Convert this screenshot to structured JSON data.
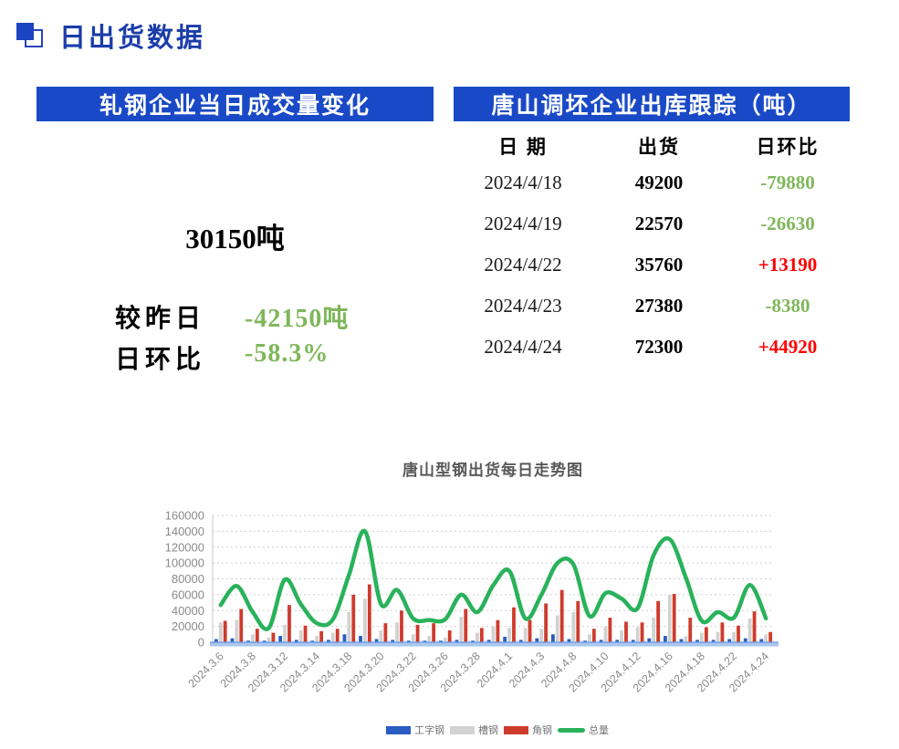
{
  "page_title": "日出货数据",
  "colors": {
    "banner_bg": "#1949C6",
    "banner_text": "#FFFFFF",
    "title_text": "#1B3DA8",
    "green": "#7FB75A",
    "red": "#FF0000",
    "black": "#000000"
  },
  "left_panel": {
    "banner": "轧钢企业当日成交量变化",
    "today_value": "30150吨",
    "rows": [
      {
        "label": "较昨日",
        "value": "-42150吨",
        "color": "green"
      },
      {
        "label": "日环比",
        "value": "-58.3%",
        "color": "green"
      }
    ]
  },
  "right_panel": {
    "banner": "唐山调坯企业出库跟踪（吨）",
    "columns": [
      "日 期",
      "出货",
      "日环比"
    ],
    "rows": [
      {
        "date": "2024/4/18",
        "shipment": "49200",
        "change": "-79880",
        "change_color": "green"
      },
      {
        "date": "2024/4/19",
        "shipment": "22570",
        "change": "-26630",
        "change_color": "green"
      },
      {
        "date": "2024/4/22",
        "shipment": "35760",
        "change": "+13190",
        "change_color": "red"
      },
      {
        "date": "2024/4/23",
        "shipment": "27380",
        "change": "-8380",
        "change_color": "green"
      },
      {
        "date": "2024/4/24",
        "shipment": "72300",
        "change": "+44920",
        "change_color": "red"
      }
    ]
  },
  "chart_data": {
    "type": "combo",
    "title": "唐山型钢出货每日走势图",
    "ylim": [
      0,
      160000
    ],
    "ytick_step": 20000,
    "grid": true,
    "legend_position": "bottom",
    "xtick_every": 2,
    "axis_strip_color": "#A9C7F0",
    "axis_strip_edge": "#6B97DE",
    "label_color": "#8A8A8A",
    "grid_color": "#CFCFCF",
    "categories": [
      "2024.3.6",
      "2024.3.7",
      "2024.3.8",
      "2024.3.11",
      "2024.3.12",
      "2024.3.13",
      "2024.3.14",
      "2024.3.15",
      "2024.3.18",
      "2024.3.19",
      "2024.3.20",
      "2024.3.21",
      "2024.3.22",
      "2024.3.25",
      "2024.3.26",
      "2024.3.27",
      "2024.3.28",
      "2024.3.29",
      "2024.4.1",
      "2024.4.2",
      "2024.4.3",
      "2024.4.7",
      "2024.4.8",
      "2024.4.9",
      "2024.4.10",
      "2024.4.11",
      "2024.4.12",
      "2024.4.15",
      "2024.4.16",
      "2024.4.17",
      "2024.4.18",
      "2024.4.19",
      "2024.4.22",
      "2024.4.23",
      "2024.4.24"
    ],
    "series": [
      {
        "name": "工字钢",
        "type": "bar",
        "color": "#2B5CC1",
        "values": [
          4000,
          5000,
          2000,
          2000,
          8000,
          3000,
          2000,
          3000,
          10000,
          8000,
          4000,
          3000,
          2000,
          2000,
          2000,
          3000,
          2000,
          3000,
          7000,
          3000,
          5000,
          10000,
          4000,
          2000,
          3000,
          3000,
          3000,
          5000,
          8000,
          4000,
          3000,
          3000,
          4000,
          5000,
          4000
        ]
      },
      {
        "name": "槽钢",
        "type": "bar",
        "color": "#D2D2D2",
        "values": [
          25000,
          28000,
          10000,
          6000,
          22000,
          15000,
          8000,
          12000,
          38000,
          55000,
          15000,
          25000,
          10000,
          8000,
          6000,
          32000,
          12000,
          20000,
          18000,
          18000,
          17000,
          34000,
          38000,
          10000,
          20000,
          15000,
          19000,
          31000,
          60000,
          8000,
          12000,
          13000,
          13000,
          30000,
          10000
        ]
      },
      {
        "name": "角钢",
        "type": "bar",
        "color": "#CE3B2C",
        "values": [
          27000,
          42000,
          17000,
          12000,
          47000,
          21000,
          14000,
          17000,
          60000,
          73000,
          24000,
          40000,
          22000,
          24000,
          15000,
          42000,
          18000,
          28000,
          44000,
          28000,
          49000,
          66000,
          52000,
          17000,
          31000,
          26000,
          25000,
          52000,
          61000,
          31000,
          19000,
          25000,
          21000,
          39000,
          13000
        ]
      },
      {
        "name": "总量",
        "type": "line",
        "color": "#29B25B",
        "values": [
          47000,
          71000,
          38000,
          18000,
          79000,
          48000,
          24000,
          29000,
          85000,
          140000,
          48000,
          66000,
          30000,
          28000,
          29000,
          60000,
          38000,
          72000,
          90000,
          30000,
          60000,
          100000,
          98000,
          33000,
          62000,
          55000,
          43000,
          110000,
          130000,
          82000,
          27000,
          38000,
          31000,
          72300,
          30150
        ]
      }
    ]
  }
}
